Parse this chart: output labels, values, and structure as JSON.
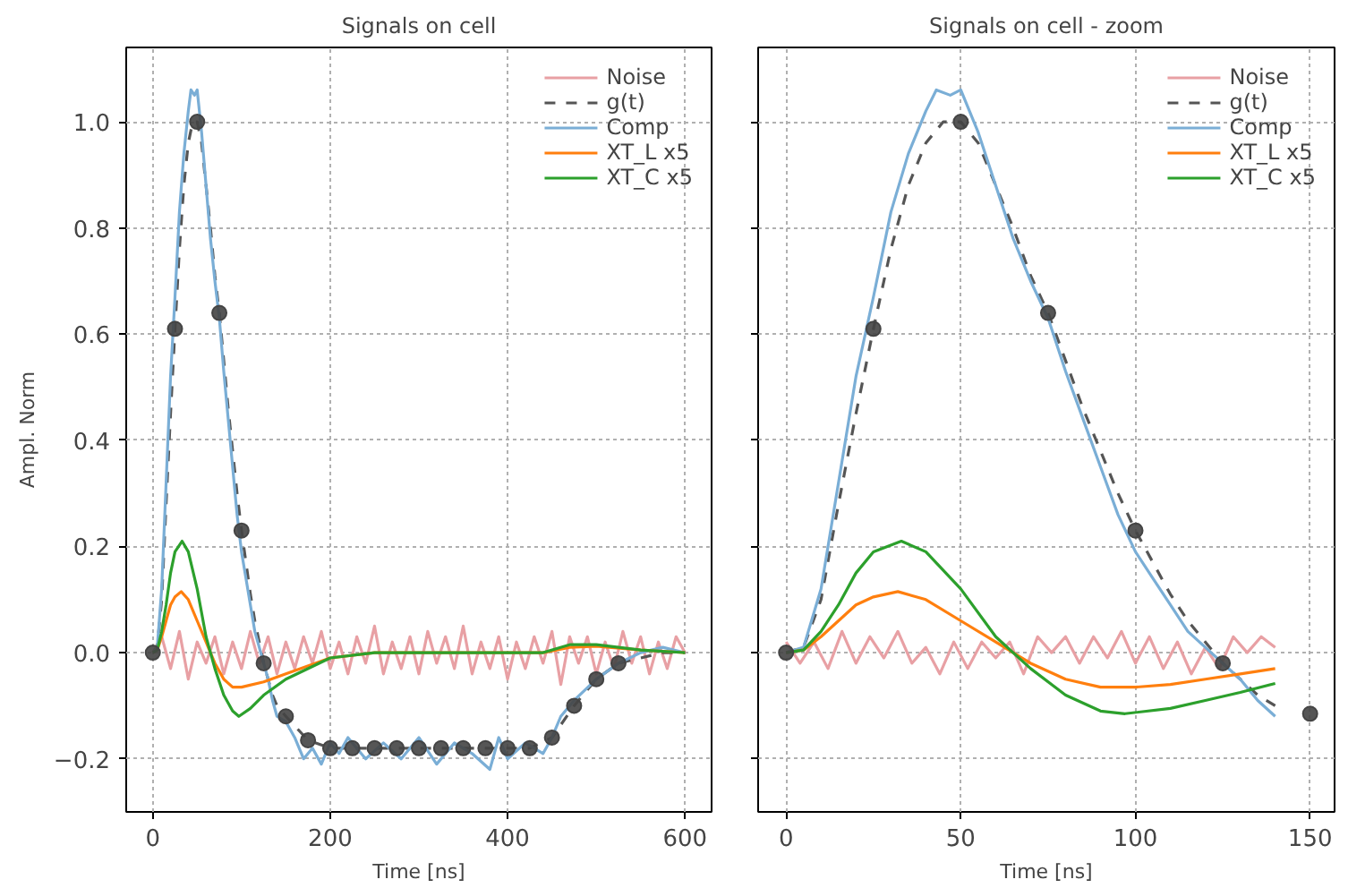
{
  "chart_data": [
    {
      "type": "line",
      "title": "Signals on cell",
      "xlabel": "Time [ns]",
      "ylabel": "Ampl. Norm",
      "xlim": [
        -30,
        630
      ],
      "ylim": [
        -0.3,
        1.14
      ],
      "xticks": [
        0,
        200,
        400,
        600
      ],
      "yticks": [
        {
          "value": -0.2,
          "label": "−0.2"
        },
        {
          "value": 0,
          "label": "0.0"
        },
        {
          "value": 0.2,
          "label": "0.2"
        },
        {
          "value": 0.4,
          "label": "0.4"
        },
        {
          "value": 0.6,
          "label": "0.6"
        },
        {
          "value": 0.8,
          "label": "0.8"
        },
        {
          "value": 1.0,
          "label": "1.0"
        }
      ],
      "grid": true,
      "legend": "top right",
      "series": [
        {
          "name": "Noise",
          "color": "#e8a0a4",
          "line_style": "solid",
          "x": [
            0,
            10,
            20,
            30,
            40,
            50,
            60,
            70,
            80,
            90,
            100,
            110,
            120,
            130,
            140,
            150,
            160,
            170,
            180,
            190,
            200,
            210,
            220,
            230,
            240,
            250,
            260,
            270,
            280,
            290,
            300,
            310,
            320,
            330,
            340,
            350,
            360,
            370,
            380,
            390,
            400,
            410,
            420,
            430,
            440,
            450,
            460,
            470,
            480,
            490,
            500,
            510,
            520,
            530,
            540,
            550,
            560,
            570,
            580,
            590,
            600
          ],
          "values": [
            0.0,
            0.03,
            -0.03,
            0.04,
            -0.05,
            0.02,
            -0.02,
            0.03,
            -0.04,
            0.02,
            -0.03,
            0.04,
            -0.02,
            0.03,
            -0.04,
            0.02,
            -0.03,
            0.03,
            -0.02,
            0.04,
            -0.03,
            0.02,
            -0.04,
            0.03,
            -0.02,
            0.05,
            -0.04,
            0.02,
            -0.03,
            0.03,
            -0.04,
            0.04,
            -0.02,
            0.03,
            -0.03,
            0.05,
            -0.04,
            0.02,
            -0.03,
            0.03,
            -0.05,
            0.02,
            -0.03,
            0.03,
            -0.02,
            0.04,
            -0.06,
            0.03,
            -0.02,
            0.03,
            -0.04,
            0.02,
            -0.03,
            0.04,
            -0.02,
            0.03,
            -0.04,
            0.02,
            -0.03,
            0.03,
            0.0
          ]
        },
        {
          "name": "g(t)",
          "color": "#555555",
          "line_style": "dashed",
          "x": [
            0,
            5,
            10,
            15,
            20,
            25,
            30,
            35,
            40,
            45,
            50,
            55,
            60,
            65,
            70,
            75,
            80,
            85,
            90,
            95,
            100,
            105,
            110,
            115,
            120,
            125,
            130,
            135,
            140,
            150,
            175,
            200,
            300,
            400,
            425,
            450,
            475,
            500,
            525,
            550,
            575,
            600
          ],
          "values": [
            0,
            0.01,
            0.1,
            0.28,
            0.45,
            0.61,
            0.76,
            0.88,
            0.96,
            1.0,
            1.0,
            0.96,
            0.88,
            0.8,
            0.71,
            0.64,
            0.55,
            0.46,
            0.38,
            0.3,
            0.23,
            0.17,
            0.11,
            0.06,
            0.02,
            -0.02,
            -0.05,
            -0.08,
            -0.1,
            -0.12,
            -0.165,
            -0.18,
            -0.18,
            -0.18,
            -0.18,
            -0.16,
            -0.1,
            -0.05,
            -0.02,
            -0.01,
            0,
            0
          ]
        },
        {
          "name": "Comp",
          "color": "#7aaed6",
          "line_style": "solid",
          "x": [
            0,
            5,
            10,
            15,
            20,
            25,
            30,
            35,
            40,
            43,
            47,
            50,
            55,
            60,
            65,
            70,
            75,
            80,
            85,
            90,
            95,
            100,
            105,
            110,
            115,
            120,
            125,
            130,
            135,
            140,
            150,
            160,
            170,
            180,
            190,
            200,
            210,
            220,
            240,
            260,
            280,
            300,
            320,
            340,
            360,
            380,
            390,
            400,
            420,
            440,
            450,
            460,
            475,
            500,
            525,
            550,
            575,
            600
          ],
          "values": [
            0,
            0.01,
            0.12,
            0.32,
            0.52,
            0.67,
            0.83,
            0.94,
            1.02,
            1.06,
            1.05,
            1.06,
            0.98,
            0.88,
            0.78,
            0.7,
            0.63,
            0.53,
            0.44,
            0.35,
            0.26,
            0.19,
            0.14,
            0.09,
            0.04,
            0.01,
            -0.02,
            -0.05,
            -0.09,
            -0.12,
            -0.13,
            -0.16,
            -0.2,
            -0.18,
            -0.21,
            -0.17,
            -0.19,
            -0.16,
            -0.2,
            -0.17,
            -0.2,
            -0.16,
            -0.21,
            -0.17,
            -0.19,
            -0.22,
            -0.16,
            -0.2,
            -0.17,
            -0.19,
            -0.16,
            -0.12,
            -0.09,
            -0.05,
            -0.02,
            0.0,
            0.01,
            0
          ]
        },
        {
          "name": "XT_L x5",
          "color": "#ff7f0e",
          "line_style": "solid",
          "x": [
            0,
            5,
            10,
            15,
            20,
            25,
            32,
            40,
            50,
            60,
            65,
            70,
            80,
            90,
            100,
            125,
            150,
            200,
            250,
            300,
            400,
            440,
            470,
            500,
            550,
            600
          ],
          "values": [
            0,
            0.005,
            0.03,
            0.06,
            0.09,
            0.105,
            0.115,
            0.1,
            0.06,
            0.02,
            0,
            -0.02,
            -0.05,
            -0.065,
            -0.065,
            -0.055,
            -0.04,
            -0.01,
            0,
            0,
            0,
            0,
            0.01,
            0.012,
            0.005,
            0
          ]
        },
        {
          "name": "XT_C x5",
          "color": "#2ca02c",
          "line_style": "solid",
          "x": [
            0,
            5,
            10,
            15,
            20,
            25,
            33,
            40,
            50,
            60,
            65,
            70,
            80,
            90,
            97,
            110,
            125,
            150,
            200,
            250,
            300,
            400,
            440,
            470,
            500,
            550,
            600
          ],
          "values": [
            0,
            0.005,
            0.04,
            0.09,
            0.15,
            0.19,
            0.21,
            0.19,
            0.12,
            0.03,
            0,
            -0.03,
            -0.08,
            -0.11,
            -0.12,
            -0.105,
            -0.08,
            -0.05,
            -0.01,
            0,
            0,
            0,
            0,
            0.015,
            0.015,
            0.005,
            0
          ]
        },
        {
          "type": "scatter",
          "marker": "circle",
          "color": "#444444",
          "x": [
            0,
            25,
            50,
            75,
            100,
            125,
            150,
            175,
            200,
            225,
            250,
            275,
            300,
            325,
            350,
            375,
            400,
            425,
            450,
            475,
            500,
            525
          ],
          "values": [
            0,
            0.61,
            1.0,
            0.64,
            0.23,
            -0.02,
            -0.12,
            -0.165,
            -0.18,
            -0.18,
            -0.18,
            -0.18,
            -0.18,
            -0.18,
            -0.18,
            -0.18,
            -0.18,
            -0.18,
            -0.16,
            -0.1,
            -0.05,
            -0.02
          ]
        }
      ]
    },
    {
      "type": "line",
      "title": "Signals on cell - zoom",
      "xlabel": "Time [ns]",
      "xlim": [
        -8,
        157
      ],
      "ylim": [
        -0.3,
        1.14
      ],
      "xticks": [
        0,
        50,
        100,
        150
      ],
      "yticks": [
        -0.2,
        0,
        0.2,
        0.4,
        0.6,
        0.8,
        1.0
      ],
      "tick_labels": "x",
      "grid": true,
      "legend": "top right",
      "series": [
        {
          "name": "Noise",
          "color": "#e8a0a4",
          "line_style": "solid",
          "x": [
            0,
            4,
            8,
            12,
            16,
            20,
            24,
            28,
            32,
            36,
            40,
            44,
            48,
            52,
            56,
            60,
            64,
            68,
            72,
            76,
            80,
            84,
            88,
            92,
            96,
            100,
            104,
            108,
            112,
            116,
            120,
            124,
            128,
            132,
            136,
            140
          ],
          "values": [
            0.02,
            -0.02,
            0.02,
            -0.03,
            0.04,
            -0.02,
            0.03,
            -0.01,
            0.04,
            -0.02,
            0.01,
            -0.04,
            0.02,
            -0.03,
            0.02,
            -0.01,
            0.02,
            -0.04,
            0.03,
            0.0,
            0.03,
            -0.02,
            0.03,
            -0.01,
            0.04,
            -0.02,
            0.03,
            -0.03,
            0.02,
            -0.04,
            0.01,
            -0.03,
            0.03,
            0.0,
            0.03,
            0.01
          ]
        },
        {
          "name": "g(t)",
          "color": "#555555",
          "line_style": "dashed",
          "x": [
            0,
            5,
            10,
            15,
            20,
            25,
            30,
            35,
            40,
            45,
            50,
            55,
            60,
            65,
            70,
            75,
            80,
            85,
            90,
            95,
            100,
            105,
            110,
            115,
            120,
            125,
            130,
            135,
            140
          ],
          "values": [
            0,
            0.01,
            0.1,
            0.28,
            0.45,
            0.61,
            0.76,
            0.88,
            0.96,
            1.0,
            1.0,
            0.96,
            0.88,
            0.8,
            0.71,
            0.64,
            0.55,
            0.46,
            0.38,
            0.3,
            0.23,
            0.17,
            0.11,
            0.06,
            0.02,
            -0.02,
            -0.05,
            -0.08,
            -0.1
          ]
        },
        {
          "name": "Comp",
          "color": "#7aaed6",
          "line_style": "solid",
          "x": [
            0,
            5,
            10,
            15,
            20,
            25,
            30,
            35,
            40,
            43,
            47,
            50,
            55,
            60,
            65,
            70,
            75,
            80,
            85,
            90,
            95,
            100,
            105,
            110,
            115,
            120,
            125,
            130,
            135,
            140
          ],
          "values": [
            0,
            0.01,
            0.12,
            0.32,
            0.52,
            0.67,
            0.83,
            0.94,
            1.02,
            1.06,
            1.05,
            1.06,
            0.98,
            0.88,
            0.78,
            0.7,
            0.63,
            0.53,
            0.44,
            0.35,
            0.26,
            0.19,
            0.14,
            0.09,
            0.04,
            0.01,
            -0.02,
            -0.05,
            -0.09,
            -0.12
          ]
        },
        {
          "name": "XT_L x5",
          "color": "#ff7f0e",
          "line_style": "solid",
          "x": [
            0,
            5,
            10,
            15,
            20,
            25,
            32,
            40,
            50,
            60,
            65,
            70,
            80,
            90,
            100,
            110,
            120,
            130,
            140
          ],
          "values": [
            0,
            0.005,
            0.03,
            0.06,
            0.09,
            0.105,
            0.115,
            0.1,
            0.06,
            0.02,
            0,
            -0.02,
            -0.05,
            -0.065,
            -0.065,
            -0.06,
            -0.05,
            -0.04,
            -0.03
          ]
        },
        {
          "name": "XT_C x5",
          "color": "#2ca02c",
          "line_style": "solid",
          "x": [
            0,
            5,
            10,
            15,
            20,
            25,
            33,
            40,
            50,
            60,
            65,
            70,
            80,
            90,
            97,
            110,
            120,
            130,
            140
          ],
          "values": [
            0,
            0.005,
            0.04,
            0.09,
            0.15,
            0.19,
            0.21,
            0.19,
            0.12,
            0.03,
            0,
            -0.03,
            -0.08,
            -0.11,
            -0.115,
            -0.105,
            -0.09,
            -0.075,
            -0.058
          ]
        },
        {
          "type": "scatter",
          "marker": "circle",
          "color": "#444444",
          "x": [
            0,
            25,
            50,
            75,
            100,
            125,
            150
          ],
          "values": [
            0,
            0.61,
            1.0,
            0.64,
            0.23,
            -0.02,
            -0.115
          ]
        }
      ]
    }
  ]
}
